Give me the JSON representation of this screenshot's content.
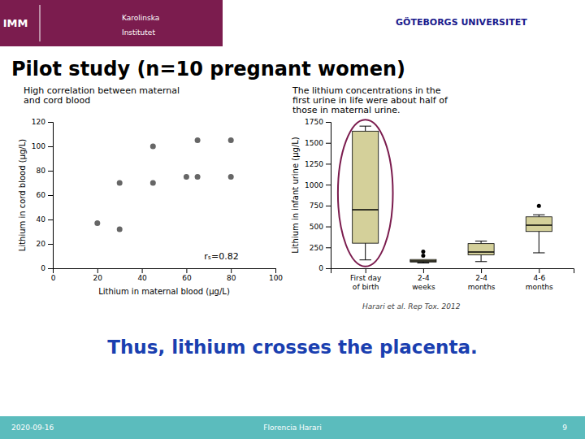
{
  "page": {
    "title": "Pilot study (n=10 pregnant women)",
    "title_color": "#000000",
    "header_left": [
      "IMM",
      "Karolinska",
      "Institutet"
    ],
    "header_color": "#7b1c4e",
    "text_color": "#ffffff",
    "header_right": "GÖTEBORGS UNIVERSITET",
    "header_right_color": "#1a1a8c",
    "citation": "Harari et al. Rep Tox. 2012",
    "citation_color": "#444444",
    "bottom_text": "Thus, lithium crosses the placenta.",
    "bottom_text_color": "#1a3fb0",
    "footer": [
      "2020-09-16",
      "Florencia Harari",
      "9"
    ],
    "footer_color": "#5bbcbd"
  },
  "chart_data": [
    {
      "type": "scatter",
      "title": [
        "High correlation between maternal",
        "and cord blood"
      ],
      "xlabel": "Lithium in maternal blood (μg/L)",
      "ylabel": "Lithium in cord blood (μg/L)",
      "x": [
        20,
        30,
        30,
        45,
        45,
        60,
        65,
        65,
        80,
        80
      ],
      "values": [
        37,
        32,
        70,
        70,
        100,
        75,
        75,
        105,
        105,
        75
      ],
      "color": "#666666",
      "xlim": [
        0,
        100
      ],
      "ylim": [
        0,
        120
      ],
      "xticks": [
        0,
        20,
        40,
        60,
        80,
        100
      ],
      "yticks": [
        0,
        20,
        40,
        60,
        80,
        100,
        120
      ],
      "annotation": "rₛ=0.82",
      "grid": false
    },
    {
      "type": "box",
      "title": [
        "The lithium concentrations in the",
        "first urine in life were about half of",
        "those in maternal urine."
      ],
      "ylabel": "Lithium in infant urine (μg/L)",
      "categories": [
        "First day\nof birth",
        "2-4\nweeks",
        "2-4\nmonths",
        "4-6\nmonths"
      ],
      "boxes": [
        {
          "q1": 300,
          "q3": 1640,
          "median": 700,
          "whislo": 100,
          "whishi": 1700,
          "fliers": []
        },
        {
          "q1": 75,
          "q3": 105,
          "median": 88,
          "whislo": 65,
          "whishi": 65,
          "fliers": [
            150,
            200
          ]
        },
        {
          "q1": 160,
          "q3": 295,
          "median": 195,
          "whislo": 80,
          "whishi": 325,
          "fliers": []
        },
        {
          "q1": 440,
          "q3": 615,
          "median": 515,
          "whislo": 185,
          "whishi": 640,
          "fliers": [
            745
          ]
        }
      ],
      "color": "#d4d09a",
      "ylim": [
        0,
        1750
      ],
      "yticks": [
        0,
        250,
        500,
        750,
        1000,
        1250,
        1500,
        1750
      ],
      "grid": false,
      "highlight": {
        "category": 0,
        "color": "#7b1c4e"
      }
    }
  ]
}
